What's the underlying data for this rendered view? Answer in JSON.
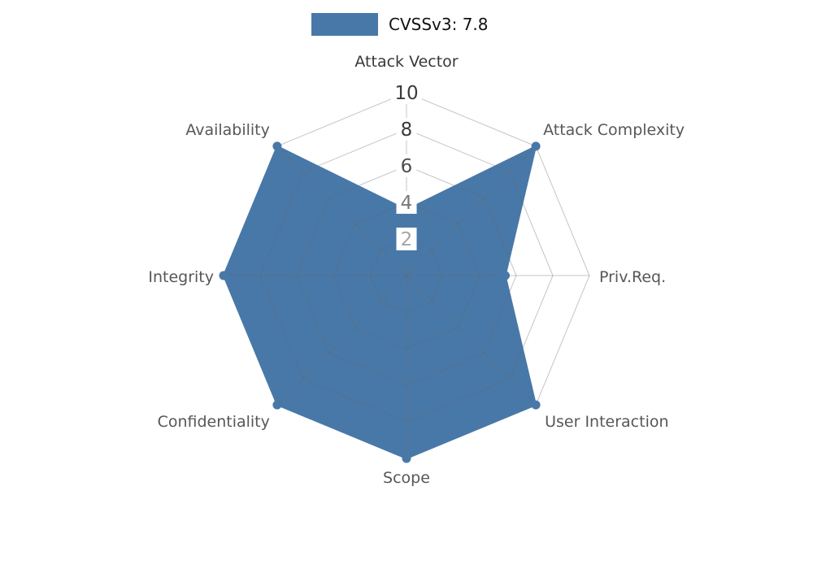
{
  "legend": {
    "label": "CVSSv3: 7.8"
  },
  "chart_data": {
    "type": "radar",
    "title": "CVSSv3: 7.8",
    "score": 7.8,
    "categories": [
      "Attack Vector",
      "Attack Complexity",
      "Priv.Req.",
      "User Interaction",
      "Scope",
      "Confidentiality",
      "Integrity",
      "Availability"
    ],
    "series": [
      {
        "name": "CVSSv3: 7.8",
        "color": "#4878a8",
        "values": [
          3.6,
          10,
          5.4,
          10,
          10,
          10,
          10,
          10
        ]
      }
    ],
    "rmax": 10,
    "rings": [
      2,
      4,
      6,
      8,
      10
    ],
    "ticks": [
      {
        "value": 10,
        "color": "#3b3b3b"
      },
      {
        "value": 8,
        "color": "#3b3b3b"
      },
      {
        "value": 6,
        "color": "#4d4d4d"
      },
      {
        "value": 4,
        "color": "#787878"
      },
      {
        "value": 2,
        "color": "#a6a6a6"
      }
    ],
    "grid_color": "#666666",
    "grid_opacity": 0.38,
    "category_label_colors": [
      "#383838",
      "#575757",
      "#575757",
      "#575757",
      "#575757",
      "#575757",
      "#575757",
      "#575757"
    ],
    "legend_position": "top",
    "grid": true
  }
}
